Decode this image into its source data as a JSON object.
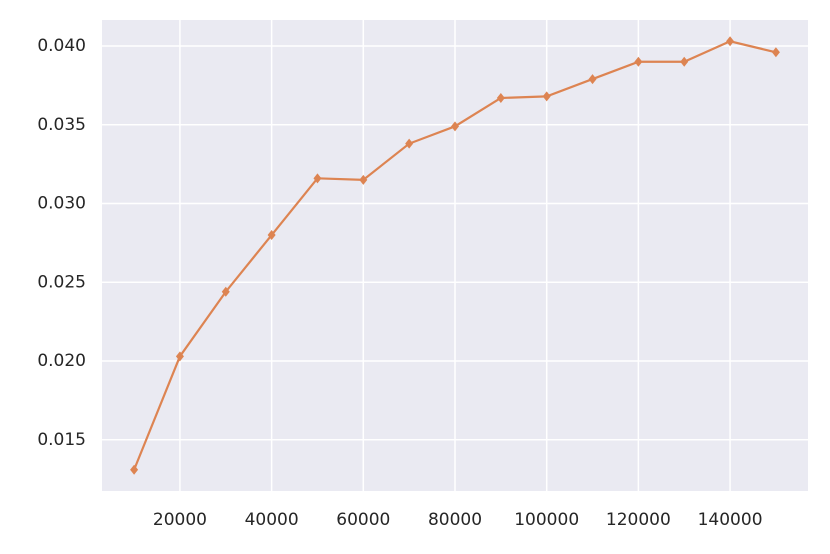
{
  "chart_data": {
    "type": "line",
    "x": [
      10000,
      20000,
      30000,
      40000,
      50000,
      60000,
      70000,
      80000,
      90000,
      100000,
      110000,
      120000,
      130000,
      140000,
      150000
    ],
    "series": [
      {
        "color": "#dd8452",
        "values": [
          0.0131,
          0.0203,
          0.0244,
          0.028,
          0.0316,
          0.0315,
          0.0338,
          0.0349,
          0.0367,
          0.0368,
          0.0379,
          0.039,
          0.039,
          0.0403,
          0.0396
        ]
      }
    ],
    "xlim": [
      3000,
      157000
    ],
    "xticks": [
      20000,
      40000,
      60000,
      80000,
      100000,
      120000,
      140000
    ],
    "ylim": [
      0.01175,
      0.04165
    ],
    "yticks": [
      {
        "value": 0.015,
        "label": "0.015"
      },
      {
        "value": 0.02,
        "label": "0.020"
      },
      {
        "value": 0.025,
        "label": "0.025"
      },
      {
        "value": 0.03,
        "label": "0.030"
      },
      {
        "value": 0.035,
        "label": "0.035"
      },
      {
        "value": 0.04,
        "label": "0.040"
      }
    ],
    "grid": true,
    "background": "#eaeaf2"
  }
}
